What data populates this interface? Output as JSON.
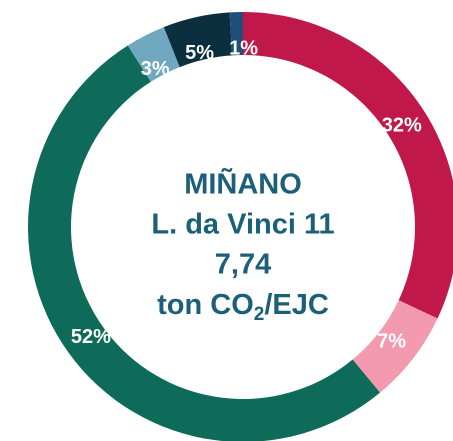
{
  "chart_data": {
    "type": "donut",
    "center_text": [
      "MIÑANO",
      "L. da Vinci 11",
      "7,74",
      [
        "ton CO",
        "2",
        "/EJC"
      ]
    ],
    "values": [
      32,
      7,
      52,
      3,
      5,
      1
    ],
    "value_labels": [
      "32%",
      "7%",
      "52%",
      "3%",
      "5%",
      "1%"
    ],
    "colors": [
      "#c0184a",
      "#f39ab0",
      "#0e6b5a",
      "#6fa8bf",
      "#0b2f3f",
      "#1f4e79"
    ]
  }
}
